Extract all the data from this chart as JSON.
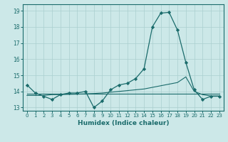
{
  "title": "",
  "xlabel": "Humidex (Indice chaleur)",
  "bg_color": "#cce8e8",
  "grid_color": "#aacfcf",
  "line_color": "#1a6b6b",
  "xlim": [
    -0.5,
    23.5
  ],
  "ylim": [
    12.8,
    19.4
  ],
  "yticks": [
    13,
    14,
    15,
    16,
    17,
    18,
    19
  ],
  "xticks": [
    0,
    1,
    2,
    3,
    4,
    5,
    6,
    7,
    8,
    9,
    10,
    11,
    12,
    13,
    14,
    15,
    16,
    17,
    18,
    19,
    20,
    21,
    22,
    23
  ],
  "xtick_labels": [
    "0",
    "1",
    "2",
    "3",
    "4",
    "5",
    "6",
    "7",
    "8",
    "9",
    "10",
    "11",
    "12",
    "13",
    "14",
    "15",
    "16",
    "17",
    "18",
    "19",
    "20",
    "21",
    "22",
    "23"
  ],
  "series_main": [
    14.4,
    13.9,
    13.7,
    13.5,
    13.8,
    13.9,
    13.9,
    14.0,
    13.0,
    13.4,
    14.1,
    14.4,
    14.5,
    14.8,
    15.4,
    18.0,
    18.85,
    18.9,
    17.8,
    15.8,
    14.1,
    13.5,
    13.7,
    13.7
  ],
  "series_flat": [
    13.85,
    13.85,
    13.85,
    13.85,
    13.85,
    13.85,
    13.85,
    13.85,
    13.85,
    13.85,
    13.85,
    13.85,
    13.85,
    13.85,
    13.85,
    13.85,
    13.85,
    13.85,
    13.85,
    13.85,
    13.85,
    13.85,
    13.85,
    13.85
  ],
  "series_trend": [
    13.75,
    13.75,
    13.75,
    13.8,
    13.8,
    13.82,
    13.83,
    13.85,
    13.87,
    13.9,
    13.95,
    14.0,
    14.05,
    14.1,
    14.15,
    14.25,
    14.35,
    14.45,
    14.55,
    14.9,
    14.0,
    13.8,
    13.72,
    13.72
  ]
}
